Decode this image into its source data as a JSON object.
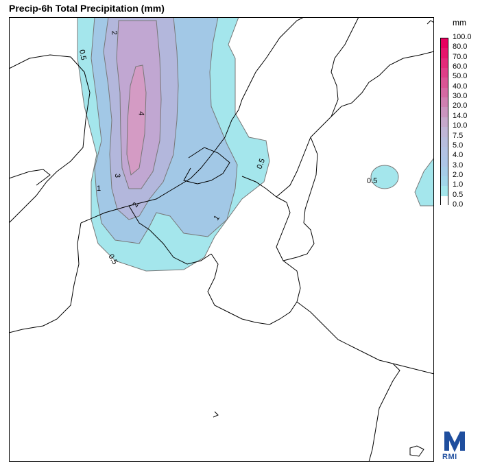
{
  "title": "Precip-6h Total Precipitation (mm)",
  "legend": {
    "unit": "mm",
    "levels": [
      "100.0",
      "80.0",
      "70.0",
      "60.0",
      "50.0",
      "40.0",
      "30.0",
      "20.0",
      "14.0",
      "10.0",
      "7.5",
      "5.0",
      "4.0",
      "3.0",
      "2.0",
      "1.0",
      "0.5",
      "0.0"
    ],
    "colors": [
      "#e8005f",
      "#e6156c",
      "#e22a7a",
      "#de3f88",
      "#d95595",
      "#d46aa3",
      "#cf80b1",
      "#ca95bf",
      "#c5a9cb",
      "#bfb6d6",
      "#b7bddd",
      "#b2c2e3",
      "#adc5e6",
      "#a6cde8",
      "#a2d6ea",
      "#a4e6ec",
      "#ffffff"
    ]
  },
  "contour_labels": {
    "l05a": "0.5",
    "l05b": "0.5",
    "l05c": "0.5",
    "l05d": "0.5",
    "l1a": "1",
    "l1b": "1",
    "l2a": "2",
    "l2b": "2",
    "l3": "3",
    "l4": "4"
  },
  "colors": {
    "fill_05": "#a4e6ec",
    "fill_1": "#a2c8e6",
    "fill_2": "#b3b7dc",
    "fill_3": "#c1a7d2",
    "fill_4": "#d49bc4",
    "contour": "#666666",
    "border": "#000000"
  },
  "logo": {
    "text": "RMI"
  }
}
